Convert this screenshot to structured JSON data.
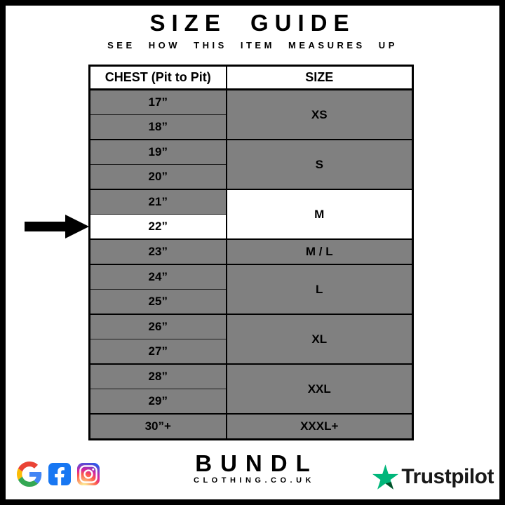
{
  "header": {
    "title": "SIZE GUIDE",
    "subtitle": "SEE HOW THIS ITEM MEASURES UP"
  },
  "size_table": {
    "columns": [
      "CHEST (Pit to Pit)",
      "SIZE"
    ],
    "groups": [
      {
        "size": "XS",
        "size_highlighted": false,
        "rows": [
          {
            "chest": "17”",
            "highlighted": false
          },
          {
            "chest": "18”",
            "highlighted": false
          }
        ]
      },
      {
        "size": "S",
        "size_highlighted": false,
        "rows": [
          {
            "chest": "19”",
            "highlighted": false
          },
          {
            "chest": "20”",
            "highlighted": false
          }
        ]
      },
      {
        "size": "M",
        "size_highlighted": true,
        "rows": [
          {
            "chest": "21”",
            "highlighted": false
          },
          {
            "chest": "22”",
            "highlighted": true
          }
        ]
      },
      {
        "size": "M / L",
        "size_highlighted": false,
        "rows": [
          {
            "chest": "23”",
            "highlighted": false
          }
        ]
      },
      {
        "size": "L",
        "size_highlighted": false,
        "rows": [
          {
            "chest": "24”",
            "highlighted": false
          },
          {
            "chest": "25”",
            "highlighted": false
          }
        ]
      },
      {
        "size": "XL",
        "size_highlighted": false,
        "rows": [
          {
            "chest": "26”",
            "highlighted": false
          },
          {
            "chest": "27”",
            "highlighted": false
          }
        ]
      },
      {
        "size": "XXL",
        "size_highlighted": false,
        "rows": [
          {
            "chest": "28”",
            "highlighted": false
          },
          {
            "chest": "29”",
            "highlighted": false
          }
        ]
      },
      {
        "size": "XXXL+",
        "size_highlighted": false,
        "rows": [
          {
            "chest": "30”+",
            "highlighted": false
          }
        ]
      }
    ],
    "arrow_points_to": "22”"
  },
  "footer": {
    "brand": "BUNDL",
    "brand_sub": "CLOTHING.CO.UK",
    "trustpilot_label": "Trustpilot",
    "social_icons": [
      "google-icon",
      "facebook-icon",
      "instagram-icon"
    ]
  },
  "colors": {
    "row_gray": "#808080",
    "highlight_white": "#ffffff",
    "border_black": "#000000",
    "trustpilot_green": "#00b67a",
    "trustpilot_dark_green": "#005128",
    "facebook_blue": "#1877f2"
  }
}
